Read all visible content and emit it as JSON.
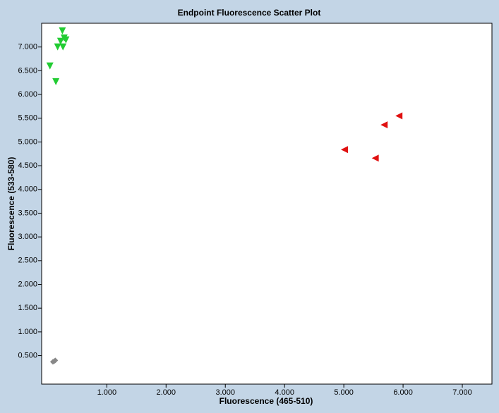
{
  "chart_data": {
    "type": "scatter",
    "title": "Endpoint Fluorescence Scatter Plot",
    "x_label": "Fluorescence (465-510)",
    "y_label": "Fluorescence (533-580)",
    "xlim": [
      -0.1,
      7.5
    ],
    "ylim": [
      -0.1,
      7.5
    ],
    "xticks": [
      {
        "value": 1,
        "label": "1.000"
      },
      {
        "value": 2,
        "label": "2.000"
      },
      {
        "value": 3,
        "label": "3.000"
      },
      {
        "value": 4,
        "label": "4.000"
      },
      {
        "value": 5,
        "label": "5.000"
      },
      {
        "value": 6,
        "label": "6.000"
      },
      {
        "value": 7,
        "label": "7.000"
      }
    ],
    "yticks": [
      {
        "value": 0.5,
        "label": "0.500"
      },
      {
        "value": 1,
        "label": "1.000"
      },
      {
        "value": 1.5,
        "label": "1.500"
      },
      {
        "value": 2,
        "label": "2.000"
      },
      {
        "value": 2.5,
        "label": "2.500"
      },
      {
        "value": 3,
        "label": "3.000"
      },
      {
        "value": 3.5,
        "label": "3.500"
      },
      {
        "value": 4,
        "label": "4.000"
      },
      {
        "value": 4.5,
        "label": "4.500"
      },
      {
        "value": 5,
        "label": "5.000"
      },
      {
        "value": 5.5,
        "label": "5.500"
      },
      {
        "value": 6,
        "label": "6.000"
      },
      {
        "value": 6.5,
        "label": "6.500"
      },
      {
        "value": 7,
        "label": "7.000"
      }
    ],
    "series": [
      {
        "color": "#22cc33",
        "marker": "triangle-down",
        "x": [
          0.25,
          0.28,
          0.22,
          0.31,
          0.17,
          0.26,
          0.04,
          0.14
        ],
        "values": [
          7.34,
          7.19,
          7.12,
          7.15,
          7.0,
          7.0,
          6.6,
          6.27
        ]
      },
      {
        "color": "#e01010",
        "marker": "triangle-left",
        "x": [
          5.01,
          5.53,
          5.68,
          5.93
        ],
        "values": [
          4.84,
          4.66,
          5.36,
          5.55
        ]
      },
      {
        "color": "#888888",
        "marker": "diamond",
        "x": [
          0.11,
          0.09,
          0.13
        ],
        "values": [
          0.38,
          0.37,
          0.4
        ]
      }
    ]
  }
}
